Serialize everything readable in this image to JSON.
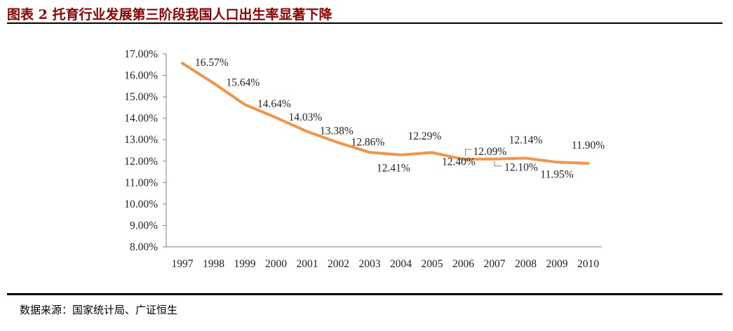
{
  "header": {
    "title": "图表 2 托育行业发展第三阶段我国人口出生率显著下降"
  },
  "footer": {
    "source": "数据来源：国家统计局、广证恒生"
  },
  "colors": {
    "line": "#f0954a",
    "axis": "#7f7f7f",
    "title": "#8b0000"
  },
  "chart_data": {
    "type": "line",
    "title": "",
    "xlabel": "",
    "ylabel": "",
    "ylim": [
      8,
      17
    ],
    "y_ticks": [
      "8.00%",
      "9.00%",
      "10.00%",
      "11.00%",
      "12.00%",
      "13.00%",
      "14.00%",
      "15.00%",
      "16.00%",
      "17.00%"
    ],
    "categories": [
      "1997",
      "1998",
      "1999",
      "2000",
      "2001",
      "2002",
      "2003",
      "2004",
      "2005",
      "2006",
      "2007",
      "2008",
      "2009",
      "2010"
    ],
    "series": [
      {
        "values": [
          16.57,
          15.64,
          14.64,
          14.03,
          13.38,
          12.86,
          12.41,
          12.29,
          12.4,
          12.09,
          12.1,
          12.14,
          11.95,
          11.9
        ],
        "labels": [
          "16.57%",
          "15.64%",
          "14.64%",
          "14.03%",
          "13.38%",
          "12.86%",
          "12.41%",
          "12.29%",
          "12.40%",
          "12.09%",
          "12.10%",
          "12.14%",
          "11.95%",
          "11.90%"
        ]
      }
    ],
    "grid": false,
    "legend": "none"
  }
}
